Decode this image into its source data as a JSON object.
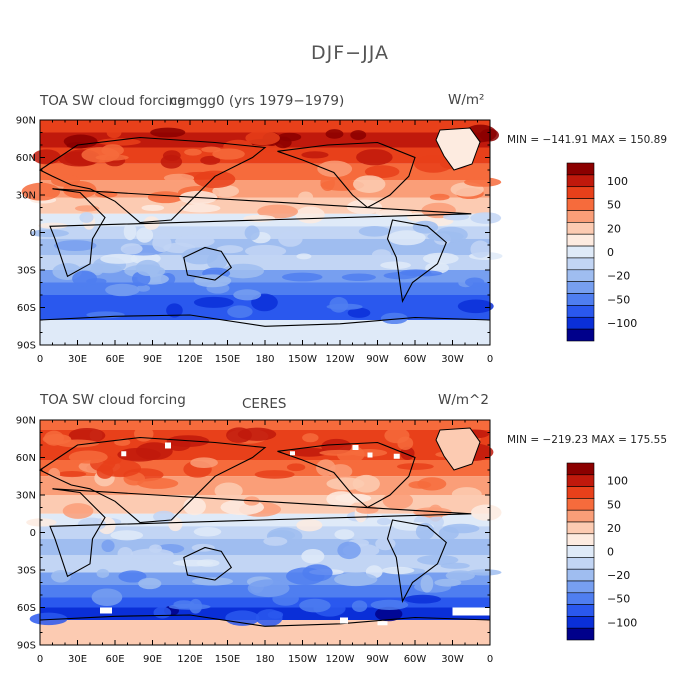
{
  "figure_title": "DJF−JJA",
  "panels": [
    {
      "title_left": "TOA SW cloud forcing",
      "title_center": "camgg0 (yrs 1979−1979)",
      "units": "W/m²",
      "stats": "MIN = −141.91  MAX = 150.89"
    },
    {
      "title_left": "TOA SW cloud forcing",
      "title_center": "CERES",
      "units": "W/m^2",
      "stats": "MIN = −219.23  MAX = 175.55"
    }
  ],
  "lat_ticks": [
    "90N",
    "60N",
    "30N",
    "0",
    "30S",
    "60S",
    "90S"
  ],
  "lon_ticks": [
    "0",
    "30E",
    "60E",
    "90E",
    "120E",
    "150E",
    "180",
    "150W",
    "120W",
    "90W",
    "60W",
    "30W",
    "0"
  ],
  "colorbar": {
    "labels": [
      "100",
      "50",
      "20",
      "0",
      "−20",
      "−50",
      "−100"
    ],
    "colors": [
      "#8b0000",
      "#c0190c",
      "#e8401a",
      "#f66b3c",
      "#fa9e78",
      "#fccbb2",
      "#fdebe0",
      "#dfeaf8",
      "#c2d5f4",
      "#9fbdf0",
      "#779ff0",
      "#4f7ef0",
      "#2a58ee",
      "#0a2fd8",
      "#00008b"
    ]
  }
}
